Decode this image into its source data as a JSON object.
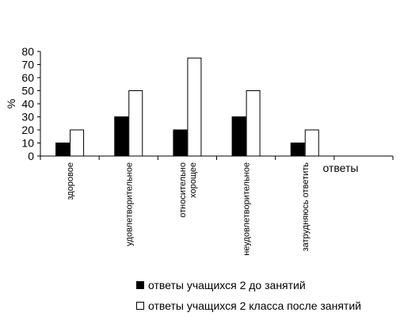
{
  "chart_data": {
    "type": "bar",
    "categories": [
      "здоровое",
      "удовлетворительное",
      "относительно хорощее",
      "неудовлетворительное",
      "затрудняюсь ответить",
      ""
    ],
    "category_lines": [
      [
        "здоровое"
      ],
      [
        "удовлетворительное"
      ],
      [
        "относительно",
        "хорощее"
      ],
      [
        "неудовлетворительное"
      ],
      [
        "затрудняюсь ответить"
      ],
      []
    ],
    "series": [
      {
        "name": "ответы учащихся 2 до занятий",
        "values": [
          10,
          30,
          20,
          30,
          10,
          null
        ],
        "color": "#000000"
      },
      {
        "name": "ответы учащихся 2 класса после занятий",
        "values": [
          20,
          50,
          75,
          50,
          20,
          null
        ],
        "color": "#ffffff"
      }
    ],
    "ylabel": "%",
    "xlabel": "ответы",
    "ylim": [
      0,
      80
    ],
    "yticks": [
      0,
      10,
      20,
      30,
      40,
      50,
      60,
      70,
      80
    ],
    "legend_position": "bottom",
    "grid": false
  }
}
